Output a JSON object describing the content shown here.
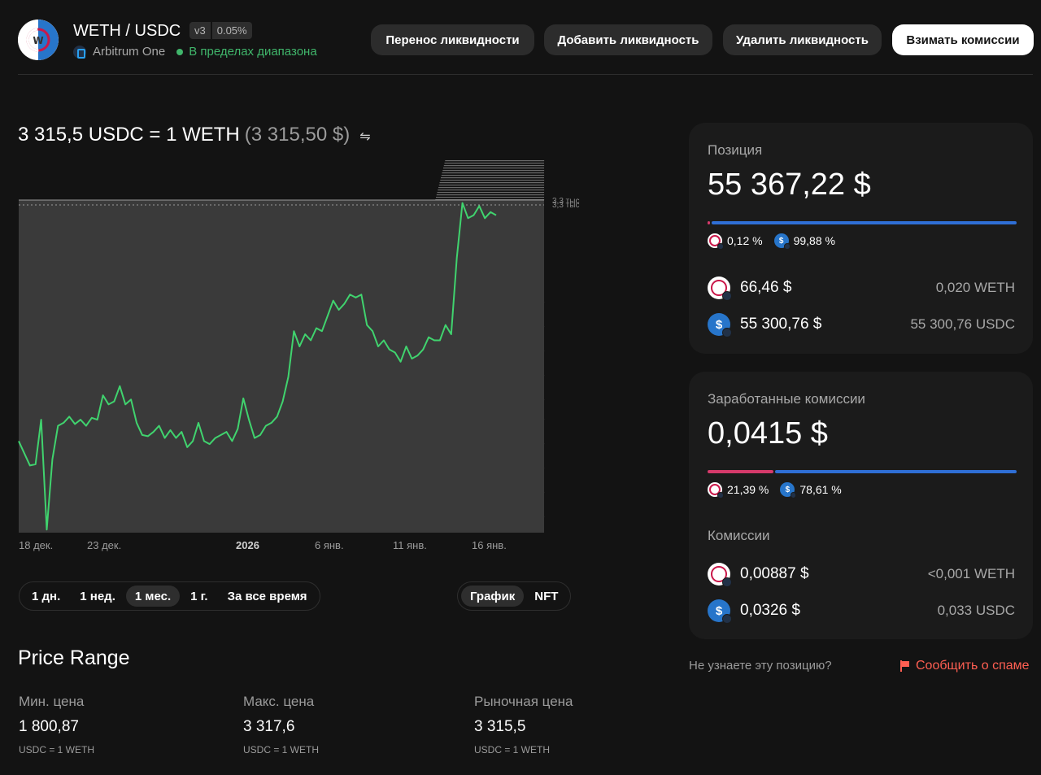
{
  "header": {
    "pair": "WETH / USDC",
    "version": "v3",
    "fee_tier": "0.05%",
    "network": "Arbitrum One",
    "status": "В пределах диапазона",
    "buttons": {
      "migrate": "Перенос ликвидности",
      "add": "Добавить ликвидность",
      "remove": "Удалить ликвидность",
      "collect": "Взимать комиссии"
    }
  },
  "price": {
    "main": "3 315,5 USDC = 1 WETH",
    "usd": "(3 315,50 $)"
  },
  "chart_data": {
    "type": "line",
    "x_labels": [
      "18 дек.",
      "23 дек.",
      "2026",
      "6 янв.",
      "11 янв.",
      "16 янв."
    ],
    "right_labels": [
      "3,3 тыс",
      "3,3 тыс"
    ],
    "ylim": [
      2750,
      3360
    ],
    "min_price": 1800.87,
    "max_price": 3317.6,
    "series": [
      {
        "values": [
          2900,
          2880,
          2860,
          2862,
          2935,
          2755,
          2870,
          2925,
          2930,
          2940,
          2928,
          2935,
          2925,
          2938,
          2935,
          2975,
          2960,
          2965,
          2990,
          2960,
          2968,
          2930,
          2910,
          2908,
          2915,
          2925,
          2905,
          2918,
          2905,
          2915,
          2890,
          2900,
          2930,
          2900,
          2895,
          2905,
          2910,
          2915,
          2900,
          2920,
          2970,
          2935,
          2905,
          2910,
          2925,
          2930,
          2940,
          2965,
          3005,
          3080,
          3055,
          3075,
          3065,
          3085,
          3080,
          3105,
          3130,
          3115,
          3125,
          3140,
          3135,
          3140,
          3090,
          3080,
          3055,
          3065,
          3050,
          3045,
          3030,
          3055,
          3035,
          3040,
          3050,
          3070,
          3065,
          3065,
          3090,
          3075,
          3200,
          3290,
          3265,
          3270,
          3285,
          3265,
          3275,
          3270
        ]
      }
    ]
  },
  "ranges": [
    "1 дн.",
    "1 нед.",
    "1 мес.",
    "1 г.",
    "За все время"
  ],
  "active_range": "1 мес.",
  "views": [
    "График",
    "NFT"
  ],
  "active_view": "График",
  "price_range": {
    "title": "Price Range",
    "min_label": "Мин. цена",
    "min_value": "1 800,87",
    "max_label": "Макс. цена",
    "max_value": "3 317,6",
    "market_label": "Рыночная цена",
    "market_value": "3 315,5",
    "unit": "USDC = 1 WETH"
  },
  "position": {
    "label": "Позиция",
    "value": "55 367,22 $",
    "weth_pct": "0,12 %",
    "usdc_pct": "99,88 %",
    "weth_share": 0.0012,
    "weth_usd": "66,46 $",
    "weth_amount": "0,020 WETH",
    "usdc_usd": "55 300,76 $",
    "usdc_amount": "55 300,76 USDC"
  },
  "fees": {
    "label": "Заработанные комиссии",
    "value": "0,0415 $",
    "weth_pct": "21,39 %",
    "usdc_pct": "78,61 %",
    "weth_share": 0.2139,
    "sub_label": "Комиссии",
    "weth_usd": "0,00887 $",
    "weth_amount": "<0,001 WETH",
    "usdc_usd": "0,0326 $",
    "usdc_amount": "0,033 USDC"
  },
  "footer": {
    "question": "Не узнаете эту позицию?",
    "report": "Сообщить о спаме"
  },
  "colors": {
    "line": "#40d36e",
    "weth": "#d63a6b",
    "usdc": "#2f6fd6",
    "in_range": "#40b66b",
    "spam": "#ff5f52"
  }
}
